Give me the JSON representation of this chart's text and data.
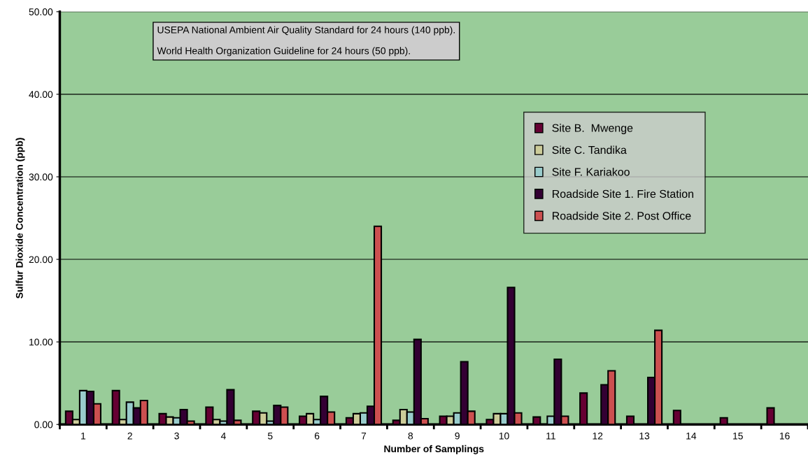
{
  "chart_data": {
    "type": "bar",
    "xlabel": "Number of Samplings",
    "ylabel": "Sulfur Dioxide Concentration (ppb)",
    "categories": [
      "1",
      "2",
      "3",
      "4",
      "5",
      "6",
      "7",
      "8",
      "9",
      "10",
      "11",
      "12",
      "13",
      "14",
      "15",
      "16"
    ],
    "series": [
      {
        "name": "Site B.  Mwenge",
        "color": "#660033",
        "values": [
          1.6,
          4.1,
          1.3,
          2.1,
          1.6,
          1.0,
          0.8,
          0.5,
          1.0,
          0.6,
          0.9,
          3.8,
          1.0,
          1.7,
          0.8,
          2.0
        ]
      },
      {
        "name": "Site C. Tandika",
        "color": "#cccc99",
        "values": [
          0.6,
          0.6,
          0.9,
          0.6,
          1.4,
          1.3,
          1.3,
          1.8,
          1.0,
          1.3,
          null,
          null,
          null,
          null,
          null,
          null
        ]
      },
      {
        "name": "Site F. Kariakoo",
        "color": "#99cccc",
        "values": [
          4.1,
          2.7,
          0.8,
          0.4,
          0.4,
          0.6,
          1.4,
          1.5,
          1.4,
          1.3,
          1.0,
          null,
          null,
          null,
          null,
          null
        ]
      },
      {
        "name": "Roadside Site 1. Fire Station",
        "color": "#330033",
        "values": [
          4.0,
          2.0,
          1.8,
          4.2,
          2.3,
          3.4,
          2.2,
          10.3,
          7.6,
          16.6,
          7.9,
          4.8,
          5.7,
          null,
          null,
          null
        ]
      },
      {
        "name": "Roadside Site 2. Post Office",
        "color": "#cc5050",
        "values": [
          2.5,
          2.9,
          0.4,
          0.5,
          2.1,
          1.5,
          24.0,
          0.7,
          1.6,
          1.4,
          1.0,
          6.5,
          11.4,
          null,
          null,
          null
        ]
      }
    ],
    "ylim": [
      0,
      50
    ],
    "yticks": [
      {
        "value": 0,
        "label": "0.00"
      },
      {
        "value": 10,
        "label": "10.00"
      },
      {
        "value": 20,
        "label": "20.00"
      },
      {
        "value": 30,
        "label": "30.00"
      },
      {
        "value": 40,
        "label": "40.00"
      },
      {
        "value": 50,
        "label": "50.00"
      }
    ],
    "grid": "y",
    "legend": "right",
    "annotations": [
      "USEPA National Ambient Air Quality Standard for 24 hours (140 ppb).",
      "World Health Organization Guideline for 24 hours (50 ppb)."
    ]
  }
}
